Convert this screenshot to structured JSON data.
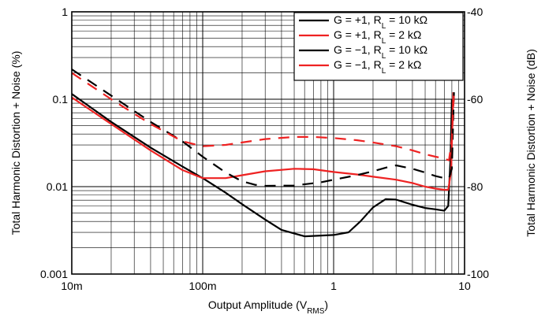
{
  "chart_data": {
    "type": "line",
    "x_scale": "log",
    "y_scale": "log",
    "xlim": [
      0.01,
      10
    ],
    "ylim": [
      0.001,
      1
    ],
    "y2lim": [
      -100,
      -40
    ],
    "grid": true,
    "legend_position": "top-right",
    "xlabel": {
      "main": "Output Amplitude (V",
      "sub": "RMS",
      "end": ")"
    },
    "ylabel": "Total Harmonic Distortion + Noise (%)",
    "y2label": "Total Harmonic Distortion + Noise (dB)",
    "x_ticks": [
      {
        "value": 0.01,
        "label": "10m"
      },
      {
        "value": 0.1,
        "label": "100m"
      },
      {
        "value": 1,
        "label": "1"
      },
      {
        "value": 10,
        "label": "10"
      }
    ],
    "y_ticks": [
      {
        "value": 1,
        "label": "1"
      },
      {
        "value": 0.1,
        "label": "0.1"
      },
      {
        "value": 0.01,
        "label": "0.01"
      },
      {
        "value": 0.001,
        "label": "0.001"
      }
    ],
    "y2_ticks": [
      {
        "value": -40,
        "label": "-40"
      },
      {
        "value": -60,
        "label": "-60"
      },
      {
        "value": -80,
        "label": "-80"
      },
      {
        "value": -100,
        "label": "-100"
      }
    ],
    "series": [
      {
        "legend": {
          "pre": "G = +1, R",
          "sub": "L",
          "post": " = 10 kΩ"
        },
        "color": "#000000",
        "dash": "solid",
        "x": [
          0.01,
          0.02,
          0.04,
          0.07,
          0.1,
          0.15,
          0.2,
          0.3,
          0.4,
          0.6,
          1.0,
          1.3,
          1.6,
          2.0,
          2.5,
          3.0,
          4.0,
          5.0,
          6.0,
          7.0,
          7.5,
          7.8,
          8.0
        ],
        "y": [
          0.115,
          0.055,
          0.028,
          0.017,
          0.0125,
          0.0085,
          0.0063,
          0.0042,
          0.0032,
          0.0027,
          0.0028,
          0.003,
          0.004,
          0.0058,
          0.0072,
          0.0071,
          0.0062,
          0.0057,
          0.0055,
          0.0053,
          0.006,
          0.02,
          0.1
        ]
      },
      {
        "legend": {
          "pre": "G = +1, R",
          "sub": "L",
          "post": " = 2 kΩ"
        },
        "color": "#ee2222",
        "dash": "solid",
        "x": [
          0.01,
          0.02,
          0.04,
          0.07,
          0.1,
          0.15,
          0.2,
          0.3,
          0.5,
          0.7,
          1.0,
          1.5,
          2.0,
          3.0,
          4.0,
          5.0,
          6.0,
          7.0,
          7.5,
          7.9,
          8.2
        ],
        "y": [
          0.105,
          0.052,
          0.026,
          0.0155,
          0.0125,
          0.0125,
          0.0135,
          0.015,
          0.016,
          0.0158,
          0.0147,
          0.0138,
          0.013,
          0.012,
          0.011,
          0.01,
          0.0095,
          0.0092,
          0.0092,
          0.015,
          0.12
        ]
      },
      {
        "legend": {
          "pre": "G = −1, R",
          "sub": "L",
          "post": " = 10 kΩ"
        },
        "color": "#000000",
        "dash": "long",
        "x": [
          0.01,
          0.02,
          0.04,
          0.07,
          0.1,
          0.15,
          0.2,
          0.25,
          0.3,
          0.5,
          0.8,
          1.0,
          1.5,
          2.0,
          2.5,
          3.0,
          4.0,
          5.0,
          6.0,
          7.0,
          7.6,
          8.0,
          8.3
        ],
        "y": [
          0.22,
          0.11,
          0.055,
          0.033,
          0.022,
          0.0145,
          0.0115,
          0.0105,
          0.0102,
          0.0103,
          0.0112,
          0.012,
          0.0135,
          0.015,
          0.0165,
          0.0175,
          0.016,
          0.0145,
          0.0132,
          0.0125,
          0.0125,
          0.016,
          0.12
        ]
      },
      {
        "legend": {
          "pre": "G = −1, R",
          "sub": "L",
          "post": " = 2 kΩ"
        },
        "color": "#ee2222",
        "dash": "long",
        "x": [
          0.01,
          0.02,
          0.04,
          0.07,
          0.1,
          0.15,
          0.2,
          0.3,
          0.5,
          0.7,
          1.0,
          1.5,
          2.0,
          3.0,
          4.0,
          5.0,
          6.0,
          7.0,
          7.6,
          8.0,
          8.3
        ],
        "y": [
          0.2,
          0.1,
          0.052,
          0.033,
          0.029,
          0.03,
          0.032,
          0.035,
          0.037,
          0.037,
          0.036,
          0.034,
          0.032,
          0.029,
          0.026,
          0.0235,
          0.022,
          0.021,
          0.02,
          0.035,
          0.12
        ]
      }
    ]
  }
}
